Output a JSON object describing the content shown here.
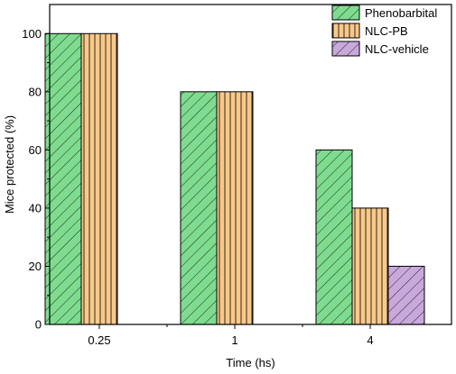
{
  "chart_data": {
    "type": "bar",
    "categories": [
      "0.25",
      "1",
      "4"
    ],
    "series": [
      {
        "name": "Phenobarbital",
        "values": [
          100,
          80,
          60
        ],
        "color": "#7fdc8f",
        "pattern": "diagonal"
      },
      {
        "name": "NLC-PB",
        "values": [
          100,
          80,
          40
        ],
        "color": "#f9c98a",
        "pattern": "vertical"
      },
      {
        "name": "NLC-vehicle",
        "values": [
          0,
          0,
          20
        ],
        "color": "#c9a8dc",
        "pattern": "diagonal"
      }
    ],
    "xlabel": "Time (hs)",
    "ylabel": "Mice protected (%)",
    "ylim": [
      0,
      110
    ],
    "yticks": [
      0,
      20,
      40,
      60,
      80,
      100
    ],
    "legend_position": "top-right",
    "grid": false
  }
}
